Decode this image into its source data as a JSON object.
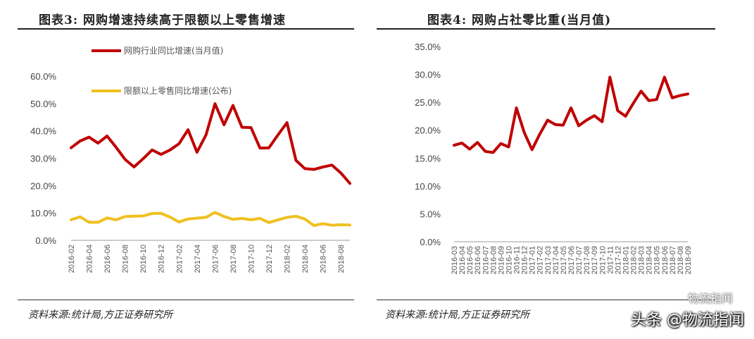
{
  "chart_data": [
    {
      "type": "line",
      "title": "图表3:  网购增速持续高于限额以上零售增速",
      "source": "资料来源:统计局,方正证券研究所",
      "y_ticks": [
        "0.0%",
        "10.0%",
        "20.0%",
        "30.0%",
        "40.0%",
        "50.0%",
        "60.0%"
      ],
      "ylim": [
        0,
        60
      ],
      "x_tick_labels": [
        "2016-02",
        "2016-04",
        "2016-06",
        "2016-08",
        "2016-10",
        "2016-12",
        "2017-02",
        "2017-04",
        "2017-06",
        "2017-08",
        "2017-10",
        "2017-12",
        "2018-02",
        "2018-04",
        "2018-06",
        "2018-08"
      ],
      "legend_position": "upper-left",
      "grid": false,
      "series": [
        {
          "name": "网购行业同比增速(当月值)",
          "color": "#c00000",
          "values": [
            33.8,
            36.3,
            37.7,
            35.5,
            38.1,
            34.0,
            29.6,
            26.8,
            29.8,
            33.0,
            31.4,
            33.0,
            35.3,
            40.4,
            32.2,
            38.5,
            49.9,
            42.2,
            49.3,
            41.3,
            41.2,
            33.7,
            33.8,
            38.5,
            43.0,
            29.2,
            26.2,
            25.9,
            26.8,
            27.5,
            24.6,
            20.8
          ]
        },
        {
          "name": "限额以上零售同比增速(公布)",
          "color": "#f0c020",
          "values": [
            7.5,
            8.6,
            6.6,
            6.6,
            8.2,
            7.5,
            8.7,
            8.8,
            8.9,
            9.8,
            9.9,
            8.5,
            6.7,
            7.8,
            8.1,
            8.4,
            10.2,
            8.7,
            7.7,
            8.0,
            7.5,
            8.0,
            6.5,
            7.5,
            8.4,
            8.8,
            7.8,
            5.4,
            6.1,
            5.5,
            5.7,
            5.6
          ]
        }
      ]
    },
    {
      "type": "line",
      "title": "图表4:  网购占社零比重(当月值)",
      "source": "资料来源:统计局,方正证券研究所",
      "y_ticks": [
        "0.0%",
        "5.0%",
        "10.0%",
        "15.0%",
        "20.0%",
        "25.0%",
        "30.0%",
        "35.0%"
      ],
      "ylim": [
        0,
        35
      ],
      "x_tick_labels": [
        "2016-03",
        "2016-04",
        "2016-05",
        "2016-06",
        "2016-07",
        "2016-08",
        "2016-09",
        "2016-10",
        "2016-11",
        "2016-12",
        "2017-01",
        "2017-02",
        "2017-03",
        "2017-04",
        "2017-05",
        "2017-06",
        "2017-07",
        "2017-08",
        "2017-09",
        "2017-10",
        "2017-11",
        "2017-12",
        "2018-01",
        "2018-02",
        "2018-03",
        "2018-04",
        "2018-05",
        "2018-06",
        "2018-07",
        "2018-08",
        "2018-09"
      ],
      "grid": false,
      "series": [
        {
          "name": "网购占社零比重",
          "color": "#c00000",
          "values": [
            17.3,
            17.7,
            16.6,
            17.8,
            16.2,
            16.0,
            17.6,
            17.0,
            24.0,
            19.6,
            16.5,
            19.3,
            21.8,
            21.0,
            20.9,
            24.0,
            20.8,
            21.8,
            22.6,
            21.5,
            29.5,
            23.5,
            22.5,
            24.8,
            27.0,
            25.3,
            25.5,
            29.5,
            25.8,
            26.2,
            26.5
          ]
        }
      ]
    }
  ],
  "watermarks": {
    "upper": "物流指闻",
    "lower": "头条 @物流指闻"
  }
}
